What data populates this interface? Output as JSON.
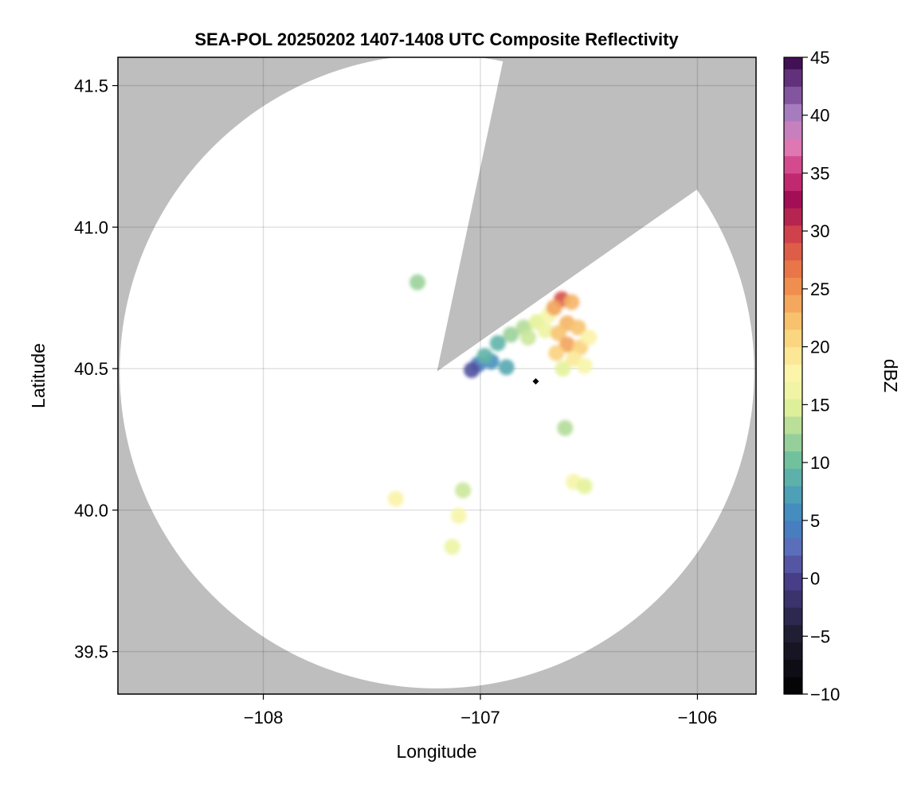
{
  "chart_data": {
    "type": "heatmap",
    "title": "SEA-POL 20250202 1407-1408 UTC Composite Reflectivity",
    "xlabel": "Longitude",
    "ylabel": "Latitude",
    "xlim": [
      -108.67,
      -105.73
    ],
    "ylim": [
      39.35,
      41.6
    ],
    "xticks": [
      -108,
      -107,
      -106
    ],
    "xtick_labels": [
      "−108",
      "−107",
      "−106"
    ],
    "yticks": [
      39.5,
      40.0,
      40.5,
      41.0,
      41.5
    ],
    "ytick_labels": [
      "39.5",
      "40.0",
      "40.5",
      "41.0",
      "41.5"
    ],
    "grid": true,
    "background_color": "#bebebe",
    "coverage_color": "#ffffff",
    "radar": {
      "center": [
        -107.2,
        40.49
      ],
      "range_deg_lat": 1.12,
      "blocked_sector_bearing_deg": [
        12,
        55
      ]
    },
    "colorbar": {
      "label": "dBZ",
      "range": [
        -10,
        45
      ],
      "step": 1.5,
      "ticks": [
        -10,
        -5,
        0,
        5,
        10,
        15,
        20,
        25,
        30,
        35,
        40,
        45
      ],
      "tick_labels": [
        "−10",
        "−5",
        "0",
        "5",
        "10",
        "15",
        "20",
        "25",
        "30",
        "35",
        "40",
        "45"
      ],
      "colormap": [
        [
          -10,
          "#000000"
        ],
        [
          -5,
          "#1e1c2e"
        ],
        [
          0,
          "#4a3f8c"
        ],
        [
          2.5,
          "#5e6cba"
        ],
        [
          5,
          "#3f84c2"
        ],
        [
          7.5,
          "#4ea3b5"
        ],
        [
          10,
          "#6cbf9f"
        ],
        [
          12.5,
          "#a6d799"
        ],
        [
          15,
          "#e4f29a"
        ],
        [
          17.5,
          "#fbf6ad"
        ],
        [
          20,
          "#fbe08a"
        ],
        [
          22.5,
          "#f6bd6a"
        ],
        [
          25,
          "#f0924f"
        ],
        [
          27.5,
          "#e46a46"
        ],
        [
          30,
          "#ce3e4b"
        ],
        [
          32.5,
          "#9e0b52"
        ],
        [
          35,
          "#cf347c"
        ],
        [
          37.5,
          "#e07eb8"
        ],
        [
          40,
          "#ad82c3"
        ],
        [
          42.5,
          "#71418f"
        ],
        [
          45,
          "#3d0b4f"
        ]
      ]
    },
    "echoes": [
      {
        "lon": -106.86,
        "lat": 40.62,
        "dbz": 12
      },
      {
        "lon": -106.8,
        "lat": 40.645,
        "dbz": 13
      },
      {
        "lon": -106.74,
        "lat": 40.665,
        "dbz": 15
      },
      {
        "lon": -106.685,
        "lat": 40.69,
        "dbz": 17
      },
      {
        "lon": -106.92,
        "lat": 40.59,
        "dbz": 9
      },
      {
        "lon": -106.78,
        "lat": 40.61,
        "dbz": 14
      },
      {
        "lon": -106.7,
        "lat": 40.635,
        "dbz": 16
      },
      {
        "lon": -106.625,
        "lat": 40.745,
        "dbz": 29
      },
      {
        "lon": -106.66,
        "lat": 40.715,
        "dbz": 24
      },
      {
        "lon": -106.58,
        "lat": 40.735,
        "dbz": 23
      },
      {
        "lon": -106.6,
        "lat": 40.66,
        "dbz": 23
      },
      {
        "lon": -106.55,
        "lat": 40.645,
        "dbz": 22
      },
      {
        "lon": -106.64,
        "lat": 40.625,
        "dbz": 22
      },
      {
        "lon": -106.6,
        "lat": 40.585,
        "dbz": 24
      },
      {
        "lon": -106.54,
        "lat": 40.575,
        "dbz": 21
      },
      {
        "lon": -106.65,
        "lat": 40.555,
        "dbz": 21
      },
      {
        "lon": -106.57,
        "lat": 40.535,
        "dbz": 19
      },
      {
        "lon": -106.5,
        "lat": 40.61,
        "dbz": 18
      },
      {
        "lon": -106.52,
        "lat": 40.51,
        "dbz": 17
      },
      {
        "lon": -106.62,
        "lat": 40.5,
        "dbz": 15
      },
      {
        "lon": -107.01,
        "lat": 40.515,
        "dbz": 4
      },
      {
        "lon": -106.95,
        "lat": 40.525,
        "dbz": 6
      },
      {
        "lon": -107.04,
        "lat": 40.495,
        "dbz": 1
      },
      {
        "lon": -106.88,
        "lat": 40.505,
        "dbz": 8
      },
      {
        "lon": -106.98,
        "lat": 40.545,
        "dbz": 9
      },
      {
        "lon": -107.29,
        "lat": 40.805,
        "dbz": 12
      },
      {
        "lon": -106.57,
        "lat": 40.1,
        "dbz": 17
      },
      {
        "lon": -106.52,
        "lat": 40.085,
        "dbz": 15
      },
      {
        "lon": -107.08,
        "lat": 40.07,
        "dbz": 14
      },
      {
        "lon": -107.39,
        "lat": 40.04,
        "dbz": 18
      },
      {
        "lon": -106.61,
        "lat": 40.29,
        "dbz": 13
      },
      {
        "lon": -107.1,
        "lat": 39.98,
        "dbz": 17
      },
      {
        "lon": -107.13,
        "lat": 39.87,
        "dbz": 16
      }
    ],
    "marker": {
      "lon": -106.745,
      "lat": 40.455,
      "color": "#000000"
    }
  }
}
